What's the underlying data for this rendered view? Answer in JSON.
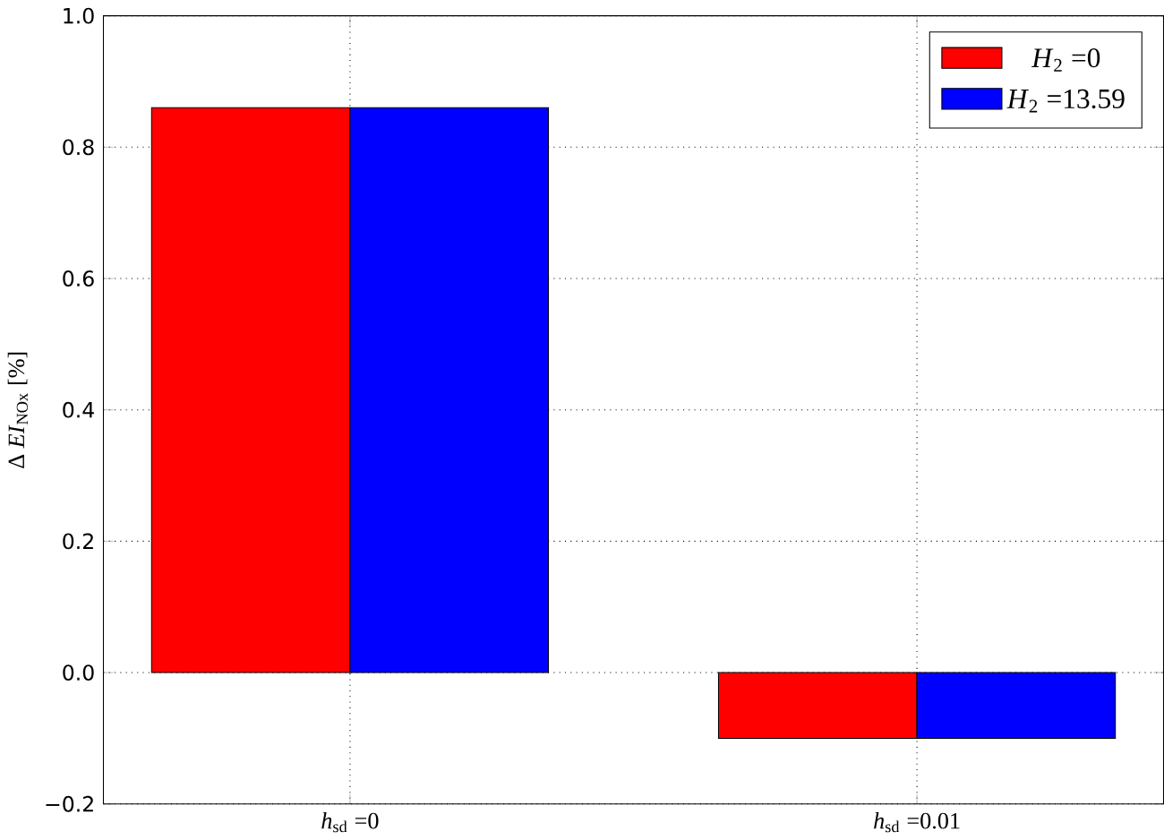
{
  "chart_data": {
    "type": "bar",
    "ylabel": "Δ *EI*$_{NOx}$ [%]",
    "categories": [
      "*h*$_{sd}$ =0",
      "*h*$_{sd}$ =0.01"
    ],
    "series": [
      {
        "name": "*H*$_{2}$ =0",
        "color": "#ff0000",
        "values": [
          0.86,
          -0.1
        ]
      },
      {
        "name": "*H*$_{2}$ =13.59",
        "color": "#0000ff",
        "values": [
          0.86,
          -0.1
        ]
      }
    ],
    "ylim": [
      -0.2,
      1.0
    ],
    "yticks": [
      {
        "value": -0.2,
        "label": "−0.2"
      },
      {
        "value": 0.0,
        "label": "0.0"
      },
      {
        "value": 0.2,
        "label": "0.2"
      },
      {
        "value": 0.4,
        "label": "0.4"
      },
      {
        "value": 0.6,
        "label": "0.6"
      },
      {
        "value": 0.8,
        "label": "0.8"
      },
      {
        "value": 1.0,
        "label": "1.0"
      }
    ],
    "grid": true,
    "legend": "top right"
  }
}
